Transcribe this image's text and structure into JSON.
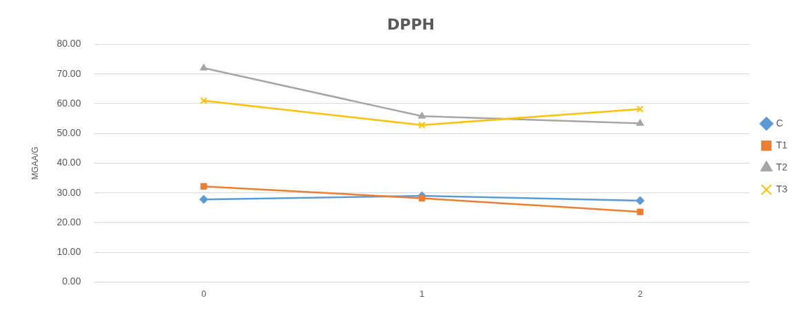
{
  "chart_data": {
    "type": "line",
    "title": "DPPH",
    "ylabel": "MGAA/G",
    "categories": [
      "0",
      "1",
      "2"
    ],
    "series": [
      {
        "name": "C",
        "color": "#5b9bd5",
        "marker": "diamond",
        "values": [
          27.8,
          29.0,
          27.4
        ]
      },
      {
        "name": "T1",
        "color": "#ed7d31",
        "marker": "square",
        "values": [
          32.2,
          28.2,
          23.6
        ]
      },
      {
        "name": "T2",
        "color": "#a5a5a5",
        "marker": "triangle",
        "values": [
          72.0,
          55.8,
          53.4
        ]
      },
      {
        "name": "T3",
        "color": "#ffc000",
        "marker": "cross",
        "values": [
          61.0,
          52.8,
          58.2
        ]
      }
    ],
    "ylim": [
      0,
      80
    ],
    "yticks": [
      {
        "value": 0,
        "label": "0.00"
      },
      {
        "value": 10,
        "label": "10.00"
      },
      {
        "value": 20,
        "label": "20.00"
      },
      {
        "value": 30,
        "label": "30.00"
      },
      {
        "value": 40,
        "label": "40.00"
      },
      {
        "value": 50,
        "label": "50.00"
      },
      {
        "value": 60,
        "label": "60.00"
      },
      {
        "value": 70,
        "label": "70.00"
      },
      {
        "value": 80,
        "label": "80.00"
      }
    ],
    "grid": "y",
    "legend": "right",
    "line_style": "solid"
  }
}
